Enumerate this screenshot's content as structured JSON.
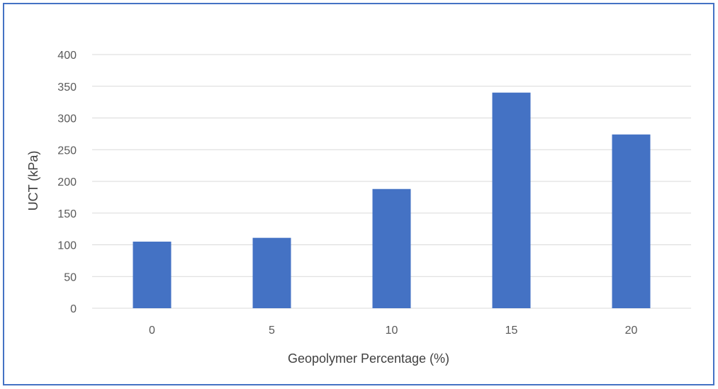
{
  "chart_data": {
    "type": "bar",
    "title": "",
    "xlabel": "Geopolymer Percentage (%)",
    "ylabel": "UCT (kPa)",
    "categories": [
      "0",
      "5",
      "10",
      "15",
      "20"
    ],
    "series": [
      {
        "values": [
          105,
          111,
          188,
          340,
          274
        ]
      }
    ],
    "ylim": [
      0,
      400
    ],
    "yticks": [
      0,
      50,
      100,
      150,
      200,
      250,
      300,
      350,
      400
    ],
    "grid": true,
    "legend": "none",
    "bar_color": "#4472c4",
    "grid_color": "#d9d9d9"
  }
}
